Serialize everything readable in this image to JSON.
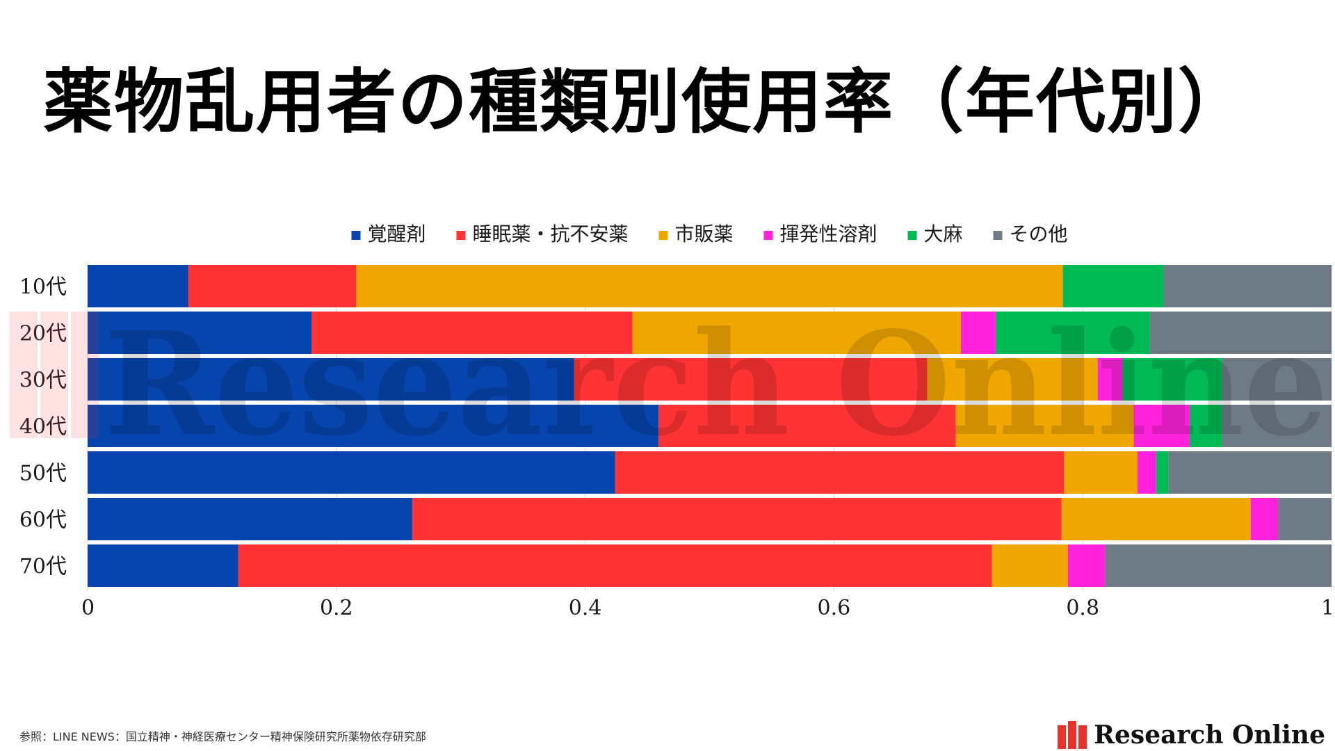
{
  "title": "薬物乱用者の種類別使用率（年代別）",
  "source_note": "参照：LINE NEWS：国立精神・神経医療センター精神保険研究所薬物依存研究部",
  "brand": "Research Online",
  "watermark_text": "Research Online",
  "chart_data": {
    "type": "bar",
    "orientation": "horizontal",
    "stacked": true,
    "categories": [
      "10代",
      "20代",
      "30代",
      "40代",
      "50代",
      "60代",
      "70代"
    ],
    "series": [
      {
        "name": "覚醒剤",
        "color": "#0645AD",
        "values": [
          0.081,
          0.18,
          0.391,
          0.459,
          0.424,
          0.261,
          0.121
        ]
      },
      {
        "name": "睡眠薬・抗不安薬",
        "color": "#FF3333",
        "values": [
          0.135,
          0.258,
          0.284,
          0.239,
          0.361,
          0.522,
          0.606
        ]
      },
      {
        "name": "市販薬",
        "color": "#F0A800",
        "values": [
          0.568,
          0.264,
          0.137,
          0.143,
          0.059,
          0.152,
          0.061
        ]
      },
      {
        "name": "揮発性溶剤",
        "color": "#FF22DD",
        "values": [
          0.0,
          0.028,
          0.02,
          0.045,
          0.015,
          0.022,
          0.03
        ]
      },
      {
        "name": "大麻",
        "color": "#00BB55",
        "values": [
          0.081,
          0.124,
          0.08,
          0.026,
          0.01,
          0.0,
          0.0
        ]
      },
      {
        "name": "その他",
        "color": "#6F7A87",
        "values": [
          0.135,
          0.146,
          0.088,
          0.088,
          0.131,
          0.043,
          0.182
        ]
      }
    ],
    "x_ticks": [
      "0",
      "0.2",
      "0.4",
      "0.6",
      "0.8",
      "1"
    ],
    "xlim": [
      0,
      1
    ],
    "title": "",
    "xlabel": "",
    "ylabel": "",
    "legend_position": "top",
    "grid": true
  }
}
